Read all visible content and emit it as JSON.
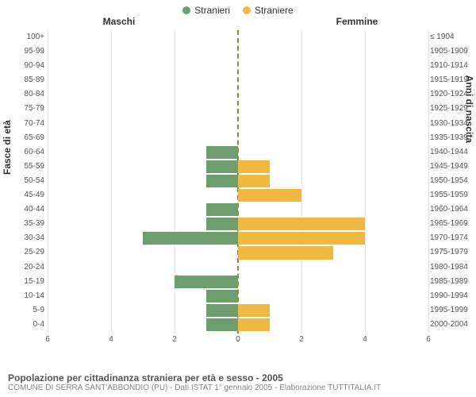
{
  "legend": {
    "male": {
      "label": "Stranieri",
      "color": "#6e9e6e"
    },
    "female": {
      "label": "Straniere",
      "color": "#f0b840"
    }
  },
  "headers": {
    "male": "Maschi",
    "female": "Femmine"
  },
  "axes": {
    "left_title": "Fasce di età",
    "right_title": "Anni di nascita",
    "x_max": 6,
    "x_ticks": [
      6,
      4,
      2,
      0,
      2,
      4,
      6
    ],
    "grid_color": "#e8e8e8",
    "center_dash_color": "#8a8a3a"
  },
  "rows": [
    {
      "age": "100+",
      "birth": "≤ 1904",
      "m": 0,
      "f": 0
    },
    {
      "age": "95-99",
      "birth": "1905-1909",
      "m": 0,
      "f": 0
    },
    {
      "age": "90-94",
      "birth": "1910-1914",
      "m": 0,
      "f": 0
    },
    {
      "age": "85-89",
      "birth": "1915-1919",
      "m": 0,
      "f": 0
    },
    {
      "age": "80-84",
      "birth": "1920-1924",
      "m": 0,
      "f": 0
    },
    {
      "age": "75-79",
      "birth": "1925-1929",
      "m": 0,
      "f": 0
    },
    {
      "age": "70-74",
      "birth": "1930-1934",
      "m": 0,
      "f": 0
    },
    {
      "age": "65-69",
      "birth": "1935-1939",
      "m": 0,
      "f": 0
    },
    {
      "age": "60-64",
      "birth": "1940-1944",
      "m": 1,
      "f": 0
    },
    {
      "age": "55-59",
      "birth": "1945-1949",
      "m": 1,
      "f": 1
    },
    {
      "age": "50-54",
      "birth": "1950-1954",
      "m": 1,
      "f": 1
    },
    {
      "age": "45-49",
      "birth": "1955-1959",
      "m": 0,
      "f": 2
    },
    {
      "age": "40-44",
      "birth": "1960-1964",
      "m": 1,
      "f": 0
    },
    {
      "age": "35-39",
      "birth": "1965-1969",
      "m": 1,
      "f": 4
    },
    {
      "age": "30-34",
      "birth": "1970-1974",
      "m": 3,
      "f": 4
    },
    {
      "age": "25-29",
      "birth": "1975-1979",
      "m": 0,
      "f": 3
    },
    {
      "age": "20-24",
      "birth": "1980-1984",
      "m": 0,
      "f": 0
    },
    {
      "age": "15-19",
      "birth": "1985-1989",
      "m": 2,
      "f": 0
    },
    {
      "age": "10-14",
      "birth": "1990-1994",
      "m": 1,
      "f": 0
    },
    {
      "age": "5-9",
      "birth": "1995-1999",
      "m": 1,
      "f": 1
    },
    {
      "age": "0-4",
      "birth": "2000-2004",
      "m": 1,
      "f": 1
    }
  ],
  "footer": {
    "title": "Popolazione per cittadinanza straniera per età e sesso - 2005",
    "sub": "COMUNE DI SERRA SANT'ABBONDIO (PU) - Dati ISTAT 1° gennaio 2005 - Elaborazione TUTTITALIA.IT"
  },
  "colors": {
    "background": "#ffffff",
    "text": "#333333",
    "muted": "#888888"
  }
}
